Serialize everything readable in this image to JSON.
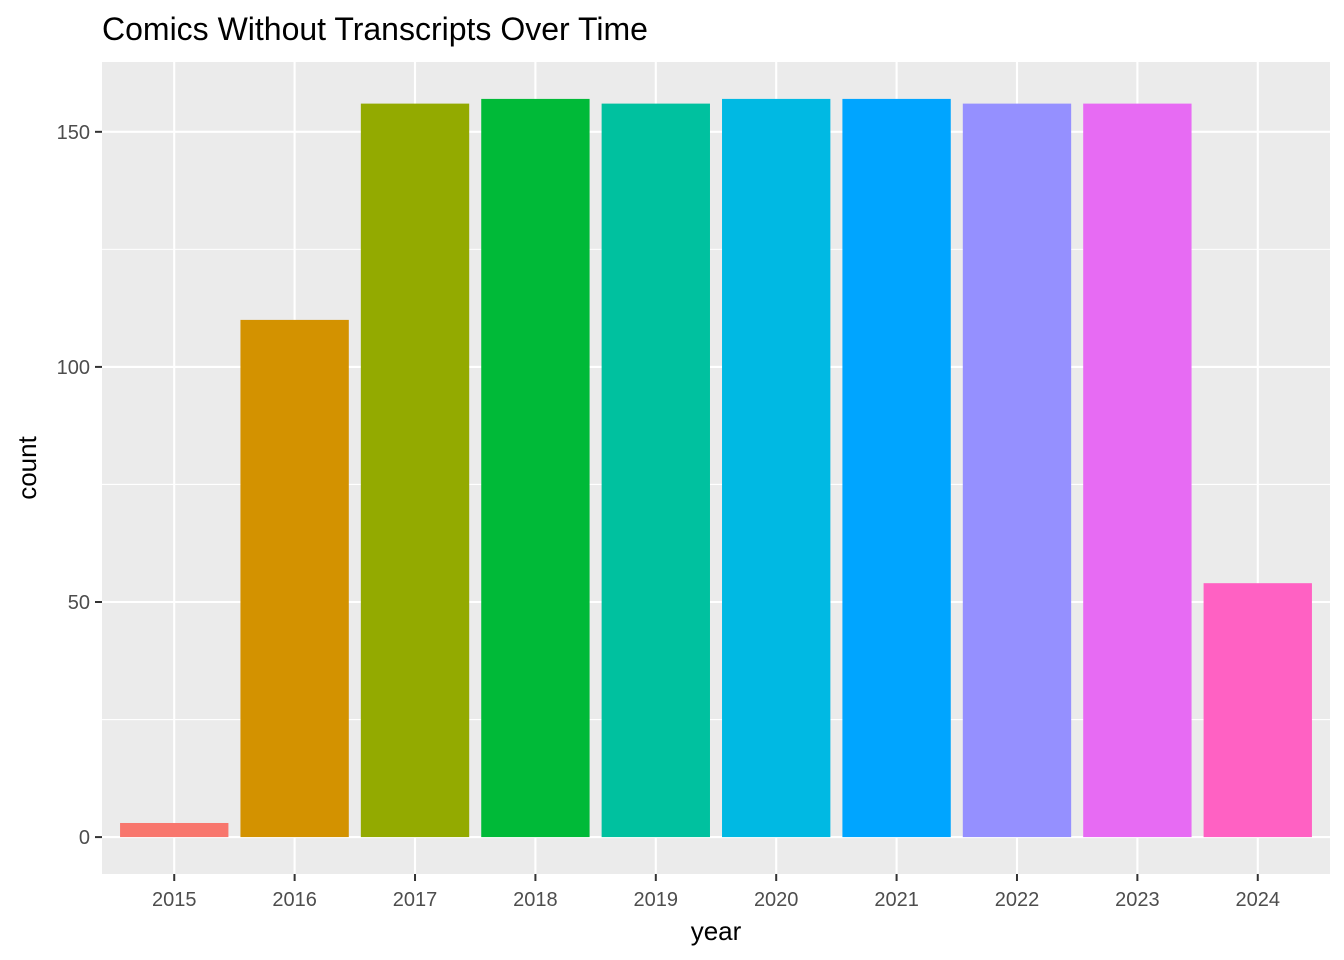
{
  "chart_data": {
    "type": "bar",
    "title": "Comics Without Transcripts Over Time",
    "xlabel": "year",
    "ylabel": "count",
    "categories": [
      "2015",
      "2016",
      "2017",
      "2018",
      "2019",
      "2020",
      "2021",
      "2022",
      "2023",
      "2024"
    ],
    "values": [
      3,
      110,
      156,
      157,
      156,
      157,
      157,
      156,
      156,
      54
    ],
    "colors": [
      "#F8766D",
      "#D39200",
      "#93AA00",
      "#00BA38",
      "#00C19F",
      "#00B9E3",
      "#00A5FF",
      "#9590FF",
      "#E76BF3",
      "#FF61C3"
    ],
    "ylim": [
      -7.85,
      164.85
    ],
    "yticks": [
      0,
      50,
      100,
      150
    ],
    "grid": true,
    "legend": "none",
    "panel_background": "#EBEBEB"
  }
}
